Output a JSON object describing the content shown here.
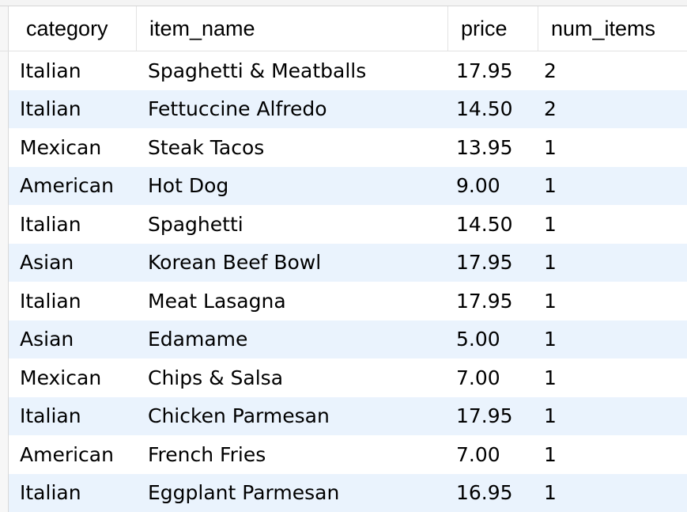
{
  "grid": {
    "columns": [
      "category",
      "item_name",
      "price",
      "num_items"
    ],
    "rows": [
      {
        "category": "Italian",
        "item_name": "Spaghetti & Meatballs",
        "price": "17.95",
        "num_items": "2"
      },
      {
        "category": "Italian",
        "item_name": "Fettuccine Alfredo",
        "price": "14.50",
        "num_items": "2"
      },
      {
        "category": "Mexican",
        "item_name": "Steak Tacos",
        "price": "13.95",
        "num_items": "1"
      },
      {
        "category": "American",
        "item_name": "Hot Dog",
        "price": "9.00",
        "num_items": "1"
      },
      {
        "category": "Italian",
        "item_name": "Spaghetti",
        "price": "14.50",
        "num_items": "1"
      },
      {
        "category": "Asian",
        "item_name": "Korean Beef Bowl",
        "price": "17.95",
        "num_items": "1"
      },
      {
        "category": "Italian",
        "item_name": "Meat Lasagna",
        "price": "17.95",
        "num_items": "1"
      },
      {
        "category": "Asian",
        "item_name": "Edamame",
        "price": "5.00",
        "num_items": "1"
      },
      {
        "category": "Mexican",
        "item_name": "Chips & Salsa",
        "price": "7.00",
        "num_items": "1"
      },
      {
        "category": "Italian",
        "item_name": "Chicken Parmesan",
        "price": "17.95",
        "num_items": "1"
      },
      {
        "category": "American",
        "item_name": "French Fries",
        "price": "7.00",
        "num_items": "1"
      },
      {
        "category": "Italian",
        "item_name": "Eggplant Parmesan",
        "price": "16.95",
        "num_items": "1"
      }
    ]
  },
  "colors": {
    "row_alt": "#eaf3fd",
    "row_base": "#ffffff",
    "gutter": "#f7f7f7"
  }
}
